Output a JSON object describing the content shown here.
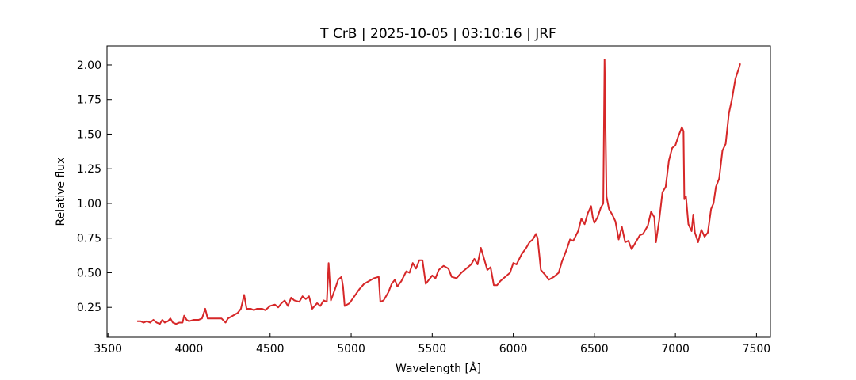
{
  "chart_data": {
    "type": "line",
    "title": "T CrB | 2025-10-05 | 03:10:16 | JRF",
    "xlabel": "Wavelength [Å]",
    "ylabel": "Relative flux",
    "xlim": [
      3494,
      7586
    ],
    "ylim": [
      0.034,
      2.137
    ],
    "xticks": [
      3500,
      4000,
      4500,
      5000,
      5500,
      6000,
      6500,
      7000,
      7500
    ],
    "yticks": [
      0.25,
      {
        "value": 0.5,
        "label": "0.50"
      },
      0.75,
      {
        "value": 1.0,
        "label": "1.00"
      },
      1.25,
      {
        "value": 1.5,
        "label": "1.50"
      },
      1.75,
      {
        "value": 2.0,
        "label": "2.00"
      }
    ],
    "tick_direction": "in",
    "series": [
      {
        "color": "#d62728",
        "x": [
          3680,
          3700,
          3720,
          3740,
          3760,
          3780,
          3800,
          3820,
          3835,
          3850,
          3870,
          3885,
          3900,
          3920,
          3940,
          3960,
          3970,
          3985,
          4000,
          4030,
          4060,
          4080,
          4100,
          4115,
          4150,
          4200,
          4225,
          4240,
          4270,
          4300,
          4320,
          4340,
          4355,
          4380,
          4400,
          4420,
          4450,
          4470,
          4500,
          4530,
          4550,
          4570,
          4590,
          4610,
          4630,
          4650,
          4680,
          4700,
          4720,
          4740,
          4760,
          4790,
          4810,
          4830,
          4850,
          4861,
          4875,
          4900,
          4920,
          4940,
          4950,
          4960,
          4990,
          5020,
          5050,
          5080,
          5110,
          5140,
          5170,
          5180,
          5200,
          5230,
          5250,
          5270,
          5285,
          5310,
          5340,
          5360,
          5380,
          5400,
          5420,
          5440,
          5460,
          5480,
          5500,
          5520,
          5540,
          5570,
          5600,
          5620,
          5650,
          5680,
          5710,
          5740,
          5760,
          5780,
          5800,
          5820,
          5840,
          5860,
          5880,
          5900,
          5920,
          5950,
          5980,
          6000,
          6020,
          6050,
          6080,
          6100,
          6120,
          6140,
          6150,
          6170,
          6200,
          6220,
          6250,
          6280,
          6300,
          6330,
          6350,
          6370,
          6400,
          6420,
          6440,
          6460,
          6480,
          6490,
          6500,
          6520,
          6540,
          6555,
          6563,
          6575,
          6590,
          6610,
          6630,
          6650,
          6670,
          6690,
          6710,
          6730,
          6750,
          6780,
          6800,
          6830,
          6850,
          6870,
          6880,
          6900,
          6920,
          6940,
          6960,
          6980,
          7000,
          7020,
          7040,
          7050,
          7055,
          7065,
          7080,
          7100,
          7110,
          7120,
          7140,
          7160,
          7180,
          7200,
          7220,
          7235,
          7250,
          7270,
          7290,
          7310,
          7330,
          7350,
          7370,
          7390,
          7400
        ],
        "values": [
          0.15,
          0.15,
          0.14,
          0.15,
          0.14,
          0.16,
          0.14,
          0.13,
          0.16,
          0.14,
          0.15,
          0.17,
          0.14,
          0.13,
          0.14,
          0.14,
          0.19,
          0.16,
          0.15,
          0.16,
          0.16,
          0.17,
          0.24,
          0.17,
          0.17,
          0.17,
          0.14,
          0.17,
          0.19,
          0.21,
          0.24,
          0.34,
          0.24,
          0.24,
          0.23,
          0.24,
          0.24,
          0.23,
          0.26,
          0.27,
          0.25,
          0.28,
          0.3,
          0.26,
          0.32,
          0.3,
          0.29,
          0.33,
          0.31,
          0.33,
          0.24,
          0.28,
          0.26,
          0.3,
          0.29,
          0.57,
          0.3,
          0.38,
          0.45,
          0.47,
          0.4,
          0.26,
          0.28,
          0.33,
          0.38,
          0.42,
          0.44,
          0.46,
          0.47,
          0.29,
          0.3,
          0.36,
          0.42,
          0.45,
          0.4,
          0.44,
          0.51,
          0.5,
          0.57,
          0.53,
          0.59,
          0.59,
          0.42,
          0.45,
          0.48,
          0.46,
          0.52,
          0.55,
          0.53,
          0.47,
          0.46,
          0.5,
          0.53,
          0.56,
          0.6,
          0.56,
          0.68,
          0.6,
          0.52,
          0.54,
          0.41,
          0.41,
          0.44,
          0.47,
          0.5,
          0.57,
          0.56,
          0.63,
          0.68,
          0.72,
          0.74,
          0.78,
          0.75,
          0.52,
          0.48,
          0.45,
          0.47,
          0.5,
          0.58,
          0.67,
          0.74,
          0.73,
          0.8,
          0.89,
          0.85,
          0.93,
          0.98,
          0.9,
          0.86,
          0.9,
          0.97,
          1.0,
          2.04,
          1.05,
          0.96,
          0.92,
          0.87,
          0.74,
          0.83,
          0.72,
          0.73,
          0.67,
          0.71,
          0.77,
          0.78,
          0.84,
          0.94,
          0.9,
          0.72,
          0.88,
          1.08,
          1.12,
          1.31,
          1.4,
          1.42,
          1.49,
          1.55,
          1.52,
          1.03,
          1.05,
          0.85,
          0.8,
          0.92,
          0.79,
          0.72,
          0.81,
          0.76,
          0.79,
          0.96,
          1.0,
          1.12,
          1.18,
          1.38,
          1.43,
          1.65,
          1.76,
          1.9,
          1.97,
          2.01
        ]
      }
    ]
  }
}
